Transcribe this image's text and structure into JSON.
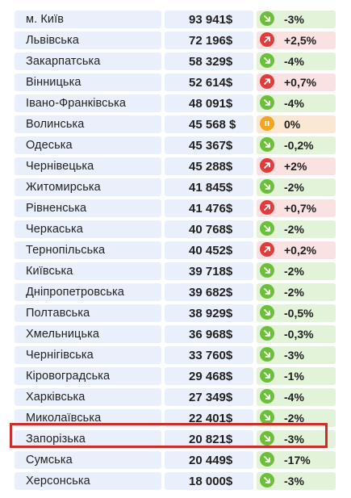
{
  "rows": [
    {
      "region": "м. Київ",
      "value": "93 941$",
      "trend": "down",
      "icon": "arrow-down-right-icon",
      "change": "-3%"
    },
    {
      "region": "Львівська",
      "value": "72 196$",
      "trend": "up",
      "icon": "arrow-up-right-icon",
      "change": "+2,5%"
    },
    {
      "region": "Закарпатська",
      "value": "58 329$",
      "trend": "down",
      "icon": "arrow-down-right-icon",
      "change": "-4%"
    },
    {
      "region": "Вінницька",
      "value": "52 614$",
      "trend": "up",
      "icon": "arrow-up-right-icon",
      "change": "+0,7%"
    },
    {
      "region": "Івано-Франківська",
      "value": "48 091$",
      "trend": "down",
      "icon": "arrow-down-right-icon",
      "change": "-4%"
    },
    {
      "region": "Волинська",
      "value": "45 568 $",
      "trend": "flat",
      "icon": "pause-icon",
      "change": "0%"
    },
    {
      "region": "Одеська",
      "value": "45 367$",
      "trend": "down",
      "icon": "arrow-down-right-icon",
      "change": "-0,2%"
    },
    {
      "region": "Чернівецька",
      "value": "45 288$",
      "trend": "up",
      "icon": "arrow-up-right-icon",
      "change": "+2%"
    },
    {
      "region": "Житомирська",
      "value": "41 845$",
      "trend": "down",
      "icon": "arrow-down-right-icon",
      "change": "-2%"
    },
    {
      "region": "Рівненська",
      "value": "41 476$",
      "trend": "up",
      "icon": "arrow-up-right-icon",
      "change": "+0,7%"
    },
    {
      "region": "Черкаська",
      "value": "40 768$",
      "trend": "down",
      "icon": "arrow-down-right-icon",
      "change": "-2%"
    },
    {
      "region": "Тернопільська",
      "value": "40 452$",
      "trend": "up",
      "icon": "arrow-up-right-icon",
      "change": "+0,2%"
    },
    {
      "region": "Київська",
      "value": "39 718$",
      "trend": "down",
      "icon": "arrow-down-right-icon",
      "change": "-2%"
    },
    {
      "region": "Дніпропетровська",
      "value": "39 682$",
      "trend": "down",
      "icon": "arrow-down-right-icon",
      "change": "-2%"
    },
    {
      "region": "Полтавська",
      "value": "38 929$",
      "trend": "down",
      "icon": "arrow-down-right-icon",
      "change": "-0,5%"
    },
    {
      "region": "Хмельницька",
      "value": "36 968$",
      "trend": "down",
      "icon": "arrow-down-right-icon",
      "change": "-0,3%"
    },
    {
      "region": "Чернігівська",
      "value": "33 760$",
      "trend": "down",
      "icon": "arrow-down-right-icon",
      "change": "-3%"
    },
    {
      "region": "Кіровоградська",
      "value": "29 468$",
      "trend": "down",
      "icon": "arrow-down-right-icon",
      "change": "-1%"
    },
    {
      "region": "Харківська",
      "value": "27 349$",
      "trend": "down",
      "icon": "arrow-down-right-icon",
      "change": "-4%"
    },
    {
      "region": "Миколаївська",
      "value": "22 401$",
      "trend": "down",
      "icon": "arrow-down-right-icon",
      "change": "-2%"
    },
    {
      "region": "Запорізька",
      "value": "20 821$",
      "trend": "down",
      "icon": "arrow-down-right-icon",
      "change": "-3%",
      "highlighted": true
    },
    {
      "region": "Сумська",
      "value": "20 449$",
      "trend": "down",
      "icon": "arrow-down-right-icon",
      "change": "-17%"
    },
    {
      "region": "Херсонська",
      "value": "18 000$",
      "trend": "down",
      "icon": "arrow-down-right-icon",
      "change": "-3%"
    }
  ],
  "colors": {
    "name_bg": "#eaf0fb",
    "down_bg": "#e2f3d9",
    "up_bg": "#fbe2e2",
    "flat_bg": "#fbe8d2",
    "down_icon": "#6cbf3a",
    "up_icon": "#e23b3b",
    "flat_icon": "#f2a423",
    "highlight_border": "#c9302c"
  }
}
